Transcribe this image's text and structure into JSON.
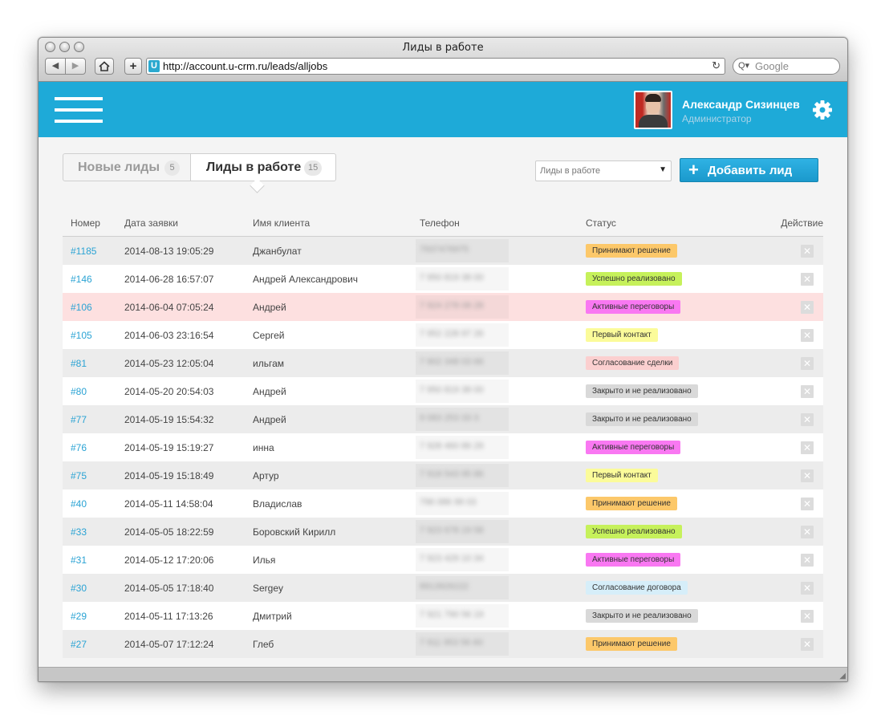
{
  "browser": {
    "title": "Лиды в работе",
    "url": "http://account.u-crm.ru/leads/alljobs",
    "search_placeholder": "Google",
    "favicon_letter": "U"
  },
  "header": {
    "user_name": "Александр Сизинцев",
    "user_role": "Администратор",
    "accent_color": "#1eaad8"
  },
  "tabs": [
    {
      "label": "Новые лиды",
      "count": "5"
    },
    {
      "label": "Лиды в работе",
      "count": "15"
    }
  ],
  "filter": {
    "selected": "Лиды в работе"
  },
  "add_button": {
    "label": "Добавить лид"
  },
  "table": {
    "columns": [
      "Номер",
      "Дата заявки",
      "Имя клиента",
      "Телефон",
      "Статус",
      "Действие"
    ],
    "rows": [
      {
        "id": "#1185",
        "date": "2014-08-13 19:05:29",
        "name": "Джанбулат",
        "phone": "7937476975",
        "status": "Принимают решение",
        "status_color": "#fcc86a"
      },
      {
        "id": "#146",
        "date": "2014-06-28 16:57:07",
        "name": "Андрей Александрович",
        "phone": "7 950 819 38 00",
        "status": "Успешно реализовано",
        "status_color": "#c6f15b"
      },
      {
        "id": "#106",
        "date": "2014-06-04 07:05:24",
        "name": "Андрей",
        "phone": "7 924 278 08 28",
        "status": "Активные переговоры",
        "status_color": "#f978f2"
      },
      {
        "id": "#105",
        "date": "2014-06-03 23:16:54",
        "name": "Сергей",
        "phone": "7 952 228 97 26",
        "status": "Первый контакт",
        "status_color": "#fbfb9a"
      },
      {
        "id": "#81",
        "date": "2014-05-23 12:05:04",
        "name": "ильгам",
        "phone": "7 902 348 03 66",
        "status": "Согласование сделки",
        "status_color": "#fbcfcf"
      },
      {
        "id": "#80",
        "date": "2014-05-20 20:54:03",
        "name": "Андрей",
        "phone": "7 950 819 38 00",
        "status": "Закрыто и не реализовано",
        "status_color": "#d9d9d9"
      },
      {
        "id": "#77",
        "date": "2014-05-19 15:54:32",
        "name": "Андрей",
        "phone": "9 083 253 33 3",
        "status": "Закрыто и не реализовано",
        "status_color": "#d9d9d9"
      },
      {
        "id": "#76",
        "date": "2014-05-19 15:19:27",
        "name": "инна",
        "phone": "7 928 460 86 29",
        "status": "Активные переговоры",
        "status_color": "#f978f2"
      },
      {
        "id": "#75",
        "date": "2014-05-19 15:18:49",
        "name": "Артур",
        "phone": "7 918 543 95 86",
        "status": "Первый контакт",
        "status_color": "#fbfb9a"
      },
      {
        "id": "#40",
        "date": "2014-05-11 14:58:04",
        "name": "Владислав",
        "phone": "796 086 99 03",
        "status": "Принимают решение",
        "status_color": "#fcc86a"
      },
      {
        "id": "#33",
        "date": "2014-05-05 18:22:59",
        "name": "Боровский Кирилл",
        "phone": "7 923 678 19 58",
        "status": "Успешно реализовано",
        "status_color": "#c6f15b"
      },
      {
        "id": "#31",
        "date": "2014-05-12 17:20:06",
        "name": "Илья",
        "phone": "7 923 429 10 34",
        "status": "Активные переговоры",
        "status_color": "#f978f2"
      },
      {
        "id": "#30",
        "date": "2014-05-05 17:18:40",
        "name": "Sergey",
        "phone": "8913926222",
        "status": "Согласование договора",
        "status_color": "#d6eef9"
      },
      {
        "id": "#29",
        "date": "2014-05-11 17:13:26",
        "name": "Дмитрий",
        "phone": "7 921 790 56 19",
        "status": "Закрыто и не реализовано",
        "status_color": "#d9d9d9"
      },
      {
        "id": "#27",
        "date": "2014-05-07 17:12:24",
        "name": "Глеб",
        "phone": "7 911 953 56 60",
        "status": "Принимают решение",
        "status_color": "#fcc86a"
      }
    ],
    "highlighted_row": "#106"
  }
}
